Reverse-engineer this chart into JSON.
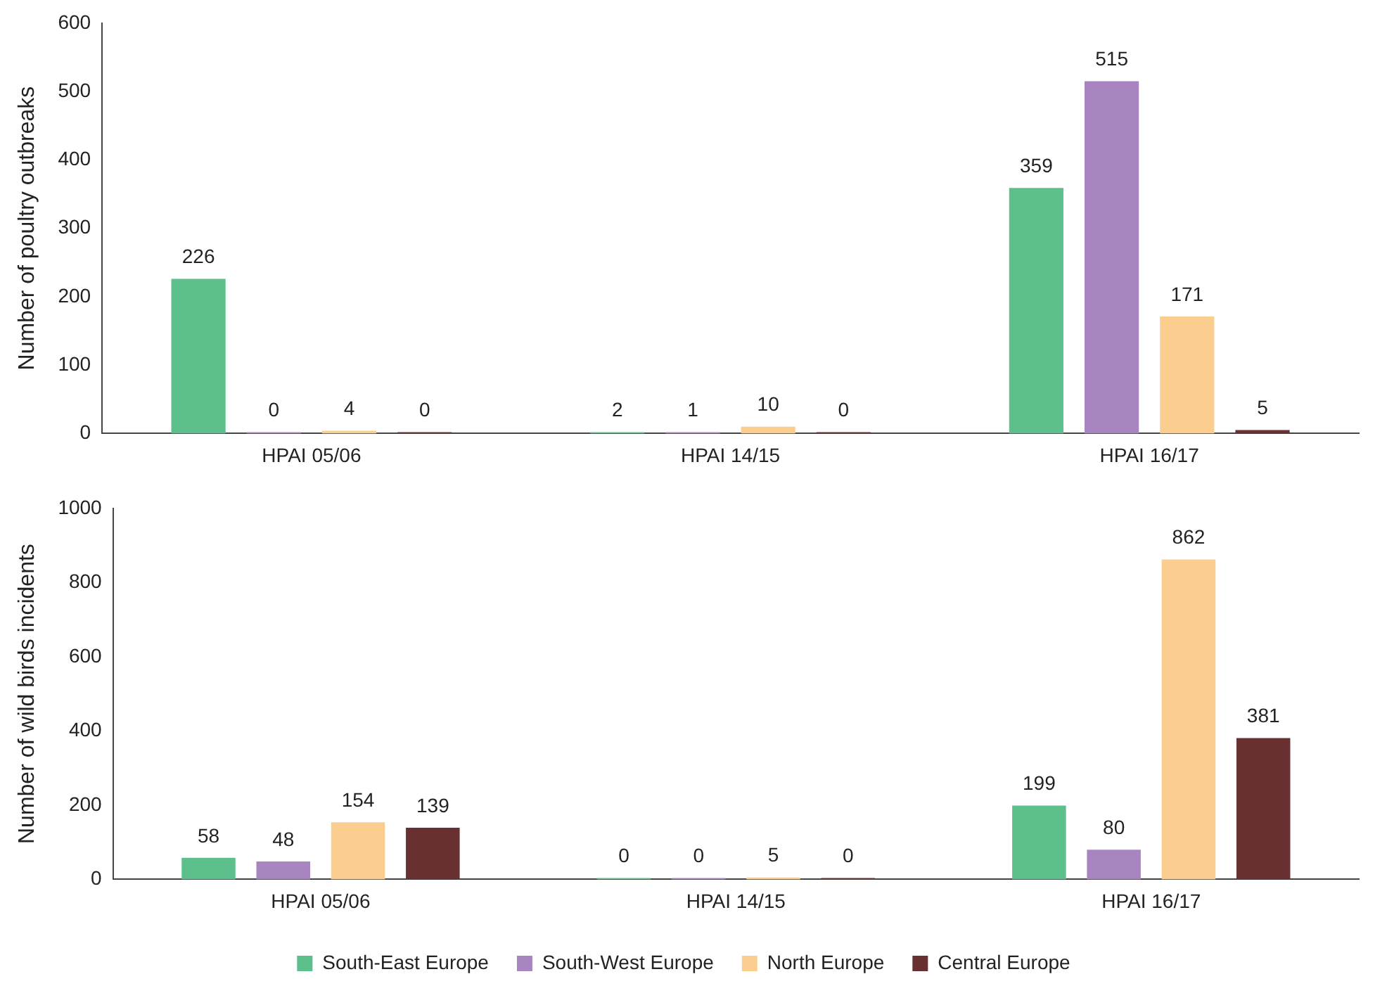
{
  "chart_data": [
    {
      "type": "bar",
      "ylabel": "Number of poultry outbreaks",
      "categories": [
        "HPAI 05/06",
        "HPAI 14/15",
        "HPAI 16/17"
      ],
      "series": [
        {
          "color": "#5dbf8c",
          "values": [
            226,
            2,
            359
          ]
        },
        {
          "color": "#a884c0",
          "values": [
            0,
            1,
            515
          ]
        },
        {
          "color": "#fbcd8e",
          "values": [
            4,
            10,
            171
          ]
        },
        {
          "color": "#683030",
          "values": [
            0,
            0,
            5
          ]
        }
      ],
      "ylim": [
        0,
        600
      ],
      "yticks": [
        0,
        100,
        200,
        300,
        400,
        500,
        600
      ],
      "grid": false,
      "legend": false,
      "data_labels": true
    },
    {
      "type": "bar",
      "ylabel": "Number of wild birds incidents",
      "categories": [
        "HPAI 05/06",
        "HPAI 14/15",
        "HPAI 16/17"
      ],
      "series": [
        {
          "name": "South-East Europe",
          "color": "#5dbf8c",
          "values": [
            58,
            0,
            199
          ]
        },
        {
          "name": "South-West Europe",
          "color": "#a884c0",
          "values": [
            48,
            0,
            80
          ]
        },
        {
          "name": "North Europe",
          "color": "#fbcd8e",
          "values": [
            154,
            5,
            862
          ]
        },
        {
          "name": "Central Europe",
          "color": "#683030",
          "values": [
            139,
            0,
            381
          ]
        }
      ],
      "ylim": [
        0,
        1000
      ],
      "yticks": [
        0,
        200,
        400,
        600,
        800,
        1000
      ],
      "grid": false,
      "legend": "bottom",
      "data_labels": true
    }
  ]
}
